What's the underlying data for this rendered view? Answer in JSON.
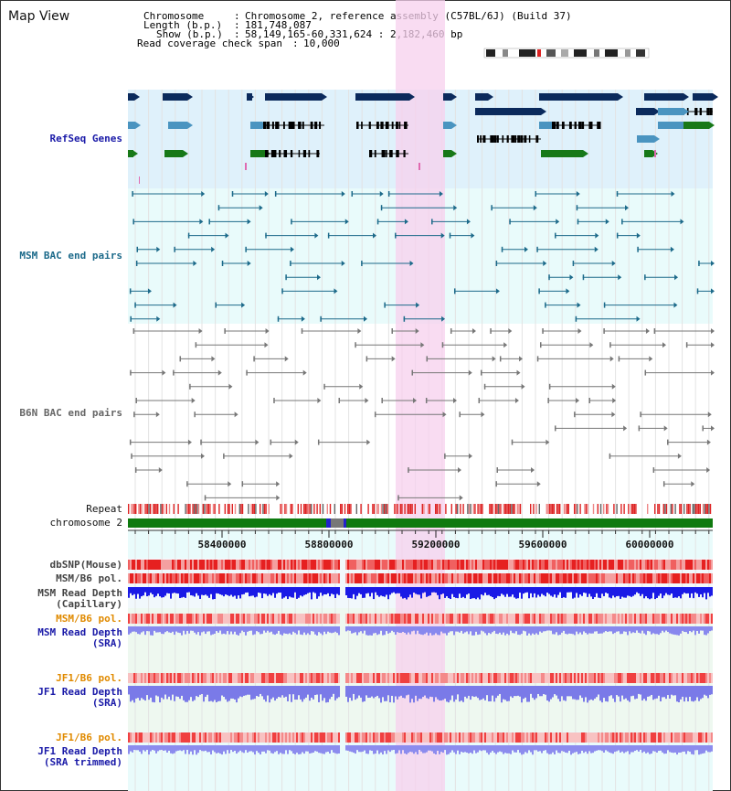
{
  "title": "Map View",
  "info": {
    "chromosome_key": "Chromosome",
    "chromosome_val": "Chromosome 2, reference assembly (C57BL/6J) (Build 37)",
    "length_key": "Length (b.p.)",
    "length_val": "181,748,087",
    "show_key": "Show (b.p.)",
    "show_val": "58,149,165-60,331,624 : 2,182,460 bp",
    "span_key": "Read coverage check span",
    "span_val": "10,000"
  },
  "tracks": {
    "refseq": "RefSeq Genes",
    "msm_bac": "MSM BAC end pairs",
    "b6n_bac": "B6N BAC end pairs",
    "repeat": "Repeat",
    "chromosome": "chromosome 2",
    "dbsnp": "dbSNP(Mouse)",
    "msm_pol1": "MSM/B6 pol.",
    "msm_depth_cap_1": "MSM Read Depth",
    "msm_depth_cap_2": "(Capillary)",
    "msm_pol2": "MSM/B6 pol.",
    "msm_depth_sra_1": "MSM Read Depth",
    "msm_depth_sra_2": "(SRA)",
    "jf1_pol1": "JF1/B6 pol.",
    "jf1_depth_1": "JF1 Read Depth",
    "jf1_depth_2": "(SRA)",
    "jf1_pol2": "JF1/B6 pol.",
    "jf1_trim_1": "JF1 Read Depth",
    "jf1_trim_2": "(SRA trimmed)"
  },
  "axis": {
    "ticks": [
      "58400000",
      "58800000",
      "59200000",
      "59600000",
      "60000000"
    ]
  },
  "colors": {
    "refseq_bg": "#dff1fb",
    "bac_bg": "#e9fbfb",
    "highlight": "#f7d9f1",
    "label_blue": "#1a1aa8",
    "label_teal": "#1c6a8a",
    "label_gray": "#666666",
    "label_orange": "#e08a00",
    "gene_navy": "#0b2a5c",
    "gene_blue": "#4a94c0",
    "gene_green": "#177817",
    "chrom_green": "#0f7a0f"
  }
}
